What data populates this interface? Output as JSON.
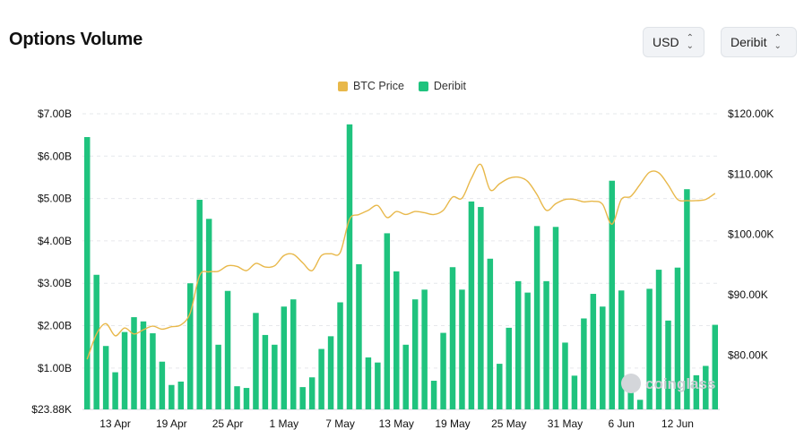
{
  "header": {
    "title": "Options Volume",
    "currency_select": "USD",
    "exchange_select": "Deribit"
  },
  "watermark": "coinglass",
  "colors": {
    "btc_price": "#e8b84a",
    "deribit": "#1fc37e",
    "grid": "#e6e8eb"
  },
  "chart_data": {
    "type": "bar",
    "title": "Options Volume",
    "legend": {
      "placement": "top-center",
      "entries": [
        "BTC Price",
        "Deribit"
      ]
    },
    "x_tick_labels": [
      "13 Apr",
      "19 Apr",
      "25 Apr",
      "1 May",
      "7 May",
      "13 May",
      "19 May",
      "25 May",
      "31 May",
      "6 Jun",
      "12 Jun"
    ],
    "x_tick_indices": [
      3,
      9,
      15,
      21,
      27,
      33,
      39,
      45,
      51,
      57,
      63
    ],
    "y_left": {
      "label": "",
      "min": 0.02388,
      "max": 7.0,
      "unit": "$B",
      "tick_values": [
        0.02388,
        1,
        2,
        3,
        4,
        5,
        6,
        7
      ],
      "tick_labels": [
        "$23.88K",
        "$1.00B",
        "$2.00B",
        "$3.00B",
        "$4.00B",
        "$5.00B",
        "$6.00B",
        "$7.00B"
      ]
    },
    "y_right": {
      "label": "",
      "min": 71000,
      "max": 120000,
      "unit": "$",
      "tick_values": [
        80000,
        90000,
        100000,
        110000,
        120000
      ],
      "tick_labels": [
        "$80.00K",
        "$90.00K",
        "$100.00K",
        "$110.00K",
        "$120.00K"
      ]
    },
    "grid": true,
    "series": [
      {
        "name": "Deribit",
        "type": "bar",
        "axis": "left",
        "values": [
          6.45,
          3.2,
          1.52,
          0.9,
          1.85,
          2.2,
          2.1,
          1.82,
          1.15,
          0.6,
          0.68,
          3.0,
          4.97,
          4.52,
          1.55,
          2.82,
          0.57,
          0.53,
          2.3,
          1.78,
          1.55,
          2.45,
          2.62,
          0.55,
          0.78,
          1.45,
          1.75,
          2.55,
          6.75,
          3.45,
          1.25,
          1.13,
          4.18,
          3.28,
          1.55,
          2.62,
          2.85,
          0.7,
          1.83,
          3.38,
          2.85,
          4.93,
          4.8,
          3.58,
          1.1,
          1.95,
          3.05,
          2.78,
          4.35,
          3.05,
          4.33,
          1.6,
          0.82,
          2.17,
          2.75,
          2.45,
          5.42,
          2.83,
          0.68,
          0.25,
          2.87,
          3.32,
          2.12,
          3.37,
          5.22,
          0.83,
          1.05,
          2.02
        ]
      },
      {
        "name": "BTC Price",
        "type": "line",
        "axis": "right",
        "values": [
          79300,
          83500,
          85200,
          83200,
          84500,
          83500,
          84200,
          84800,
          84300,
          84700,
          85000,
          87000,
          93200,
          93800,
          93900,
          94800,
          94700,
          94000,
          95200,
          94600,
          94800,
          96500,
          96700,
          95300,
          94000,
          96500,
          96800,
          97000,
          102500,
          103300,
          104000,
          104800,
          102800,
          103800,
          103300,
          103800,
          103600,
          103300,
          104000,
          106200,
          106000,
          109300,
          111600,
          107400,
          108400,
          109300,
          109500,
          108800,
          106600,
          104000,
          105100,
          105800,
          105800,
          105400,
          105500,
          105000,
          101700,
          105800,
          106300,
          108300,
          110300,
          110200,
          108200,
          105800,
          105600,
          105600,
          105800,
          106800
        ]
      }
    ]
  }
}
